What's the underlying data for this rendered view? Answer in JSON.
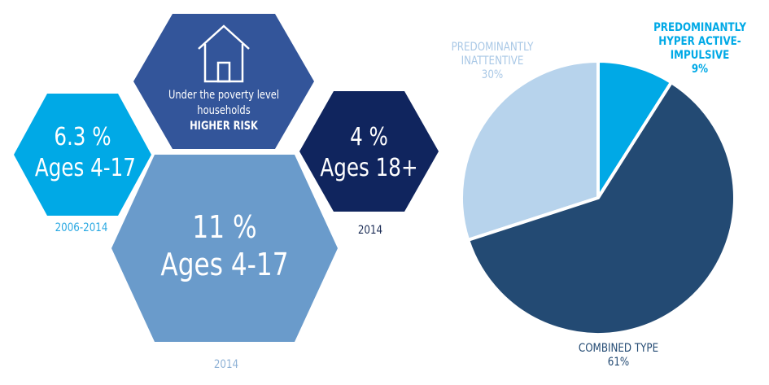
{
  "colors": {
    "light_cyan": "#00a9e6",
    "royal_blue": "#33559a",
    "navy": "#10255e",
    "steel_blue": "#6a9bcb",
    "pale_blue": "#b7d3ec",
    "dark_slate": "#234a73",
    "year_cyan": "#29a8e2",
    "year_navy": "#1b2c55",
    "year_gray": "#8fb2d6"
  },
  "hexes": {
    "poverty": {
      "icon": "house-icon",
      "line1": "Under the poverty level",
      "line2": "households",
      "line3": "HIGHER RISK"
    },
    "children_2006": {
      "value": "6.3 %",
      "ages": "Ages 4-17",
      "year": "2006-2014"
    },
    "adults_2014": {
      "value": "4 %",
      "ages": "Ages 18+",
      "year": "2014"
    },
    "children_2014": {
      "value": "11 %",
      "ages": "Ages 4-17",
      "year": "2014"
    }
  },
  "chart_data": {
    "type": "pie",
    "slices": [
      {
        "label": "PREDOMINANTLY INATTENTIVE",
        "value": 30,
        "display": "30%",
        "color": "#b7d3ec"
      },
      {
        "label": "PREDOMINANTLY HYPER ACTIVE-IMPULSIVE",
        "value": 9,
        "display": "9%",
        "color": "#00a9e6"
      },
      {
        "label": "COMBINED TYPE",
        "value": 61,
        "display": "61%",
        "color": "#234a73"
      }
    ],
    "labels": {
      "inattentive": {
        "line1": "PREDOMINANTLY",
        "line2": "INATTENTIVE",
        "line3": "30%"
      },
      "hyperactive": {
        "line1": "PREDOMINANTLY",
        "line2": "HYPER ACTIVE-",
        "line3": "IMPULSIVE",
        "line4": "9%"
      },
      "combined": {
        "line1": "COMBINED TYPE",
        "line2": "61%"
      }
    }
  }
}
